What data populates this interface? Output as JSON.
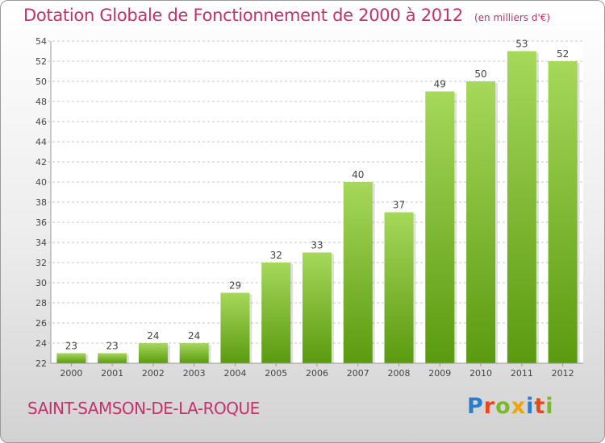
{
  "header": {
    "title": "Dotation Globale de Fonctionnement de 2000 à 2012",
    "subtitle": "(en milliers d'€)"
  },
  "footer": {
    "commune": "SAINT-SAMSON-DE-LA-ROQUE",
    "logo": "Proxiti"
  },
  "colors": {
    "accent": "#c4326a",
    "bar_light": "#a6d85a",
    "bar_dark": "#5a9a10",
    "grid": "#c8c8c8"
  },
  "chart_data": {
    "type": "bar",
    "title": "Dotation Globale de Fonctionnement de 2000 à 2012",
    "subtitle": "(en milliers d'€)",
    "xlabel": "",
    "ylabel": "",
    "categories": [
      "2000",
      "2001",
      "2002",
      "2003",
      "2004",
      "2005",
      "2006",
      "2007",
      "2008",
      "2009",
      "2010",
      "2011",
      "2012"
    ],
    "values": [
      23,
      23,
      24,
      24,
      29,
      32,
      33,
      40,
      37,
      49,
      50,
      53,
      52
    ],
    "ylim": [
      22,
      54
    ],
    "yticks": [
      22,
      24,
      26,
      28,
      30,
      32,
      34,
      36,
      38,
      40,
      42,
      44,
      46,
      48,
      50,
      52,
      54
    ],
    "grid": true
  }
}
